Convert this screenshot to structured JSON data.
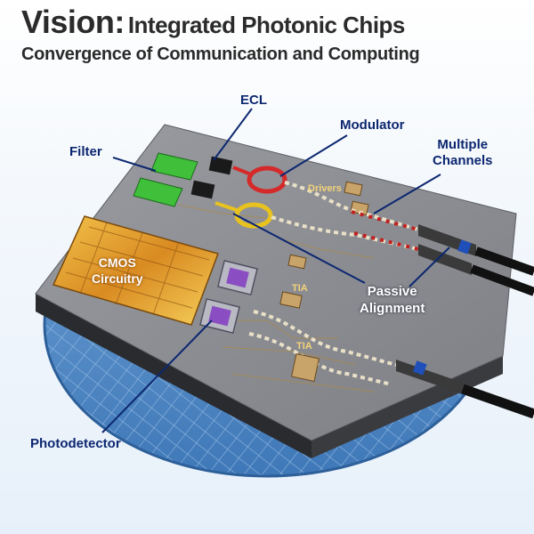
{
  "title": {
    "lead": "Vision:",
    "rest": "Integrated Photonic Chips"
  },
  "subtitle": "Convergence of Communication and Computing",
  "callouts": {
    "ecl": "ECL",
    "modulator": "Modulator",
    "filter": "Filter",
    "multiple_channels_line1": "Multiple",
    "multiple_channels_line2": "Channels",
    "photodetector": "Photodetector"
  },
  "chip_labels": {
    "drivers": "Drivers",
    "cmos_line1": "CMOS",
    "cmos_line2": "Circuitry",
    "tia_top": "TIA",
    "tia_bottom": "TIA",
    "passive_line1": "Passive",
    "passive_line2": "Alignment"
  },
  "colors": {
    "wafer": "#4f86c2",
    "chip": "#8d8f94",
    "callout_text": "#0c2770",
    "cmos": "#d99a2b",
    "filter": "#3fbf3a",
    "ring": "#d42a2a",
    "ring_yellow": "#e8c21e"
  }
}
